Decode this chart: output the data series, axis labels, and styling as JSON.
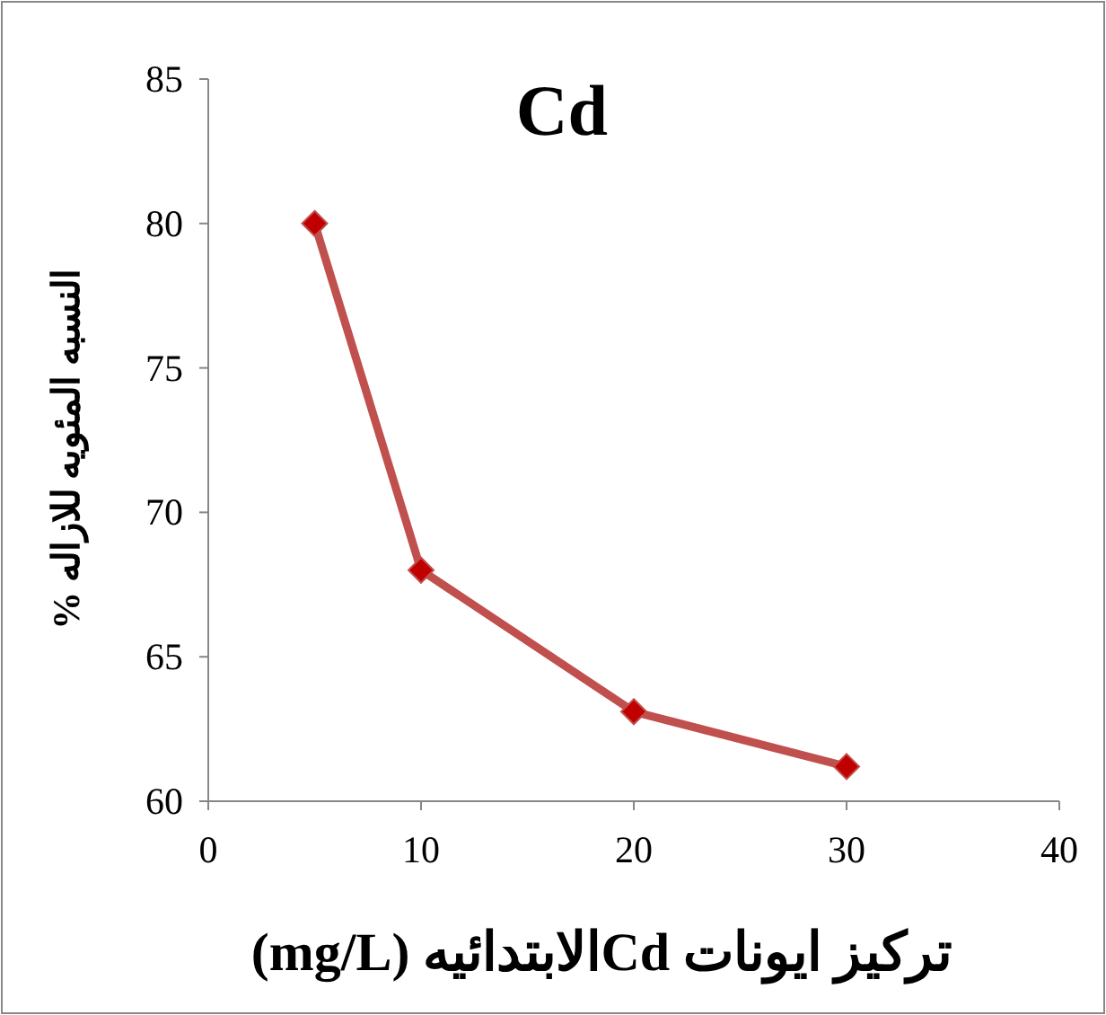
{
  "chart_data": {
    "type": "line",
    "title": "Cd",
    "xlabel": "تركيز ايونات Cdالابتدائيه (mg/L)",
    "ylabel": "النسبه المئويه للازاله %",
    "x": [
      5,
      10,
      20,
      30
    ],
    "series": [
      {
        "color": "#c0504d",
        "values": [
          80,
          68,
          63.1,
          61.2
        ]
      }
    ],
    "xlim": [
      0,
      40
    ],
    "xticks": [
      0,
      10,
      20,
      30,
      40
    ],
    "ylim": [
      60,
      85
    ],
    "yticks": [
      60,
      65,
      70,
      75,
      80,
      85
    ],
    "marker": "diamond",
    "grid": false
  }
}
